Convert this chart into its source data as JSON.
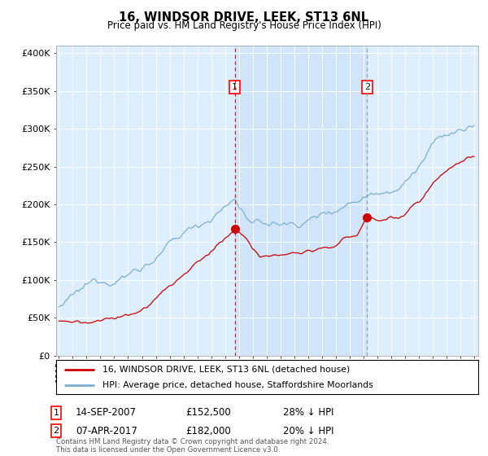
{
  "title": "16, WINDSOR DRIVE, LEEK, ST13 6NL",
  "subtitle": "Price paid vs. HM Land Registry's House Price Index (HPI)",
  "ylabel_ticks": [
    "£0",
    "£50K",
    "£100K",
    "£150K",
    "£200K",
    "£250K",
    "£300K",
    "£350K",
    "£400K"
  ],
  "ytick_values": [
    0,
    50000,
    100000,
    150000,
    200000,
    250000,
    300000,
    350000,
    400000
  ],
  "ylim": [
    0,
    410000
  ],
  "xlim_start": 1994.8,
  "xlim_end": 2025.3,
  "hpi_color": "#7bafd4",
  "price_color": "#cc0000",
  "sale1_date": 2007.71,
  "sale1_price": 152500,
  "sale2_date": 2017.27,
  "sale2_price": 182000,
  "legend_line1": "16, WINDSOR DRIVE, LEEK, ST13 6NL (detached house)",
  "legend_line2": "HPI: Average price, detached house, Staffordshire Moorlands",
  "table_row1": [
    "1",
    "14-SEP-2007",
    "£152,500",
    "28% ↓ HPI"
  ],
  "table_row2": [
    "2",
    "07-APR-2017",
    "£182,000",
    "20% ↓ HPI"
  ],
  "footer": "Contains HM Land Registry data © Crown copyright and database right 2024.\nThis data is licensed under the Open Government Licence v3.0.",
  "background_color": "#ddeeff",
  "fill_between_color": "#c8dff5"
}
